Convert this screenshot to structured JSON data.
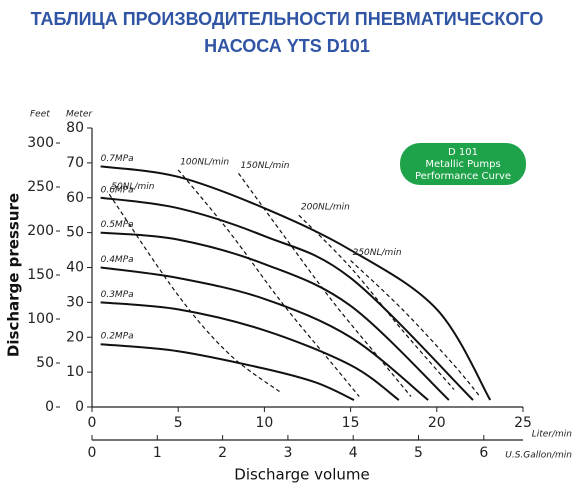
{
  "chart_data": {
    "type": "line",
    "title": [
      "ТАБЛИЦА ПРОИЗВОДИТЕЛЬНОСТИ ПНЕВМАТИЧЕСКОГО",
      "НАСОСА YTS D101"
    ],
    "badge": [
      "D 101",
      "Metallic Pumps",
      "Performance Curve"
    ],
    "badge_color": "#1ea34a",
    "x_label": "Discharge volume",
    "y_label": "Discharge pressure",
    "y_unit": "Meter",
    "y2_unit": "Feet",
    "x_unit": "Liter/min",
    "x2_unit": "U.S.Gallon/min",
    "xlim": [
      0,
      25
    ],
    "xticks": [
      0,
      5,
      10,
      15,
      20,
      25
    ],
    "x2lim": [
      0,
      6.6
    ],
    "x2ticks": [
      0,
      1,
      2,
      3,
      4,
      5,
      6
    ],
    "ylim": [
      0,
      80
    ],
    "yticks": [
      0,
      10,
      20,
      30,
      40,
      50,
      60,
      70,
      80
    ],
    "y2lim": [
      0,
      300
    ],
    "y2ticks": [
      0,
      50,
      100,
      150,
      200,
      250,
      300
    ],
    "series": [
      {
        "name": "0.7MPa",
        "style": "solid",
        "color": "#111",
        "x": [
          0.5,
          5,
          10,
          15,
          20,
          23.1
        ],
        "values": [
          69,
          66,
          57,
          45,
          28,
          2
        ]
      },
      {
        "name": "0.6MPa",
        "style": "solid",
        "color": "#111",
        "x": [
          0.5,
          5,
          10,
          15,
          22.1
        ],
        "values": [
          60,
          57,
          49,
          37,
          2
        ]
      },
      {
        "name": "0.5MPa",
        "style": "solid",
        "color": "#111",
        "x": [
          0.5,
          5,
          10,
          15,
          20.7
        ],
        "values": [
          50,
          48,
          41,
          29,
          2
        ]
      },
      {
        "name": "0.4MPa",
        "style": "solid",
        "color": "#111",
        "x": [
          0.5,
          5,
          10,
          15,
          19.5
        ],
        "values": [
          40,
          37,
          31,
          20,
          2
        ]
      },
      {
        "name": "0.3MPa",
        "style": "solid",
        "color": "#111",
        "x": [
          0.5,
          5,
          10,
          15,
          17.8
        ],
        "values": [
          30,
          28,
          22,
          12,
          2
        ]
      },
      {
        "name": "0.2MPa",
        "style": "solid",
        "color": "#111",
        "x": [
          0.5,
          5,
          10,
          13,
          15.2
        ],
        "values": [
          18,
          16,
          11,
          7,
          2
        ]
      },
      {
        "name": "50NL/min",
        "style": "dashed",
        "color": "#111",
        "x": [
          1,
          5,
          8,
          11
        ],
        "values": [
          61,
          32,
          15,
          4
        ]
      },
      {
        "name": "100NL/min",
        "style": "dashed",
        "color": "#111",
        "x": [
          5,
          8,
          11,
          14,
          15.5
        ],
        "values": [
          68,
          50,
          30,
          12,
          3
        ]
      },
      {
        "name": "150NL/min",
        "style": "dashed",
        "color": "#111",
        "x": [
          8.5,
          11,
          14,
          17,
          18.5
        ],
        "values": [
          67,
          50,
          30,
          12,
          3
        ]
      },
      {
        "name": "200NL/min",
        "style": "dashed",
        "color": "#111",
        "x": [
          12,
          15,
          18,
          21
        ],
        "values": [
          55,
          40,
          22,
          5
        ]
      },
      {
        "name": "250NL/min",
        "style": "dashed",
        "color": "#111",
        "x": [
          15,
          18,
          21,
          22.5
        ],
        "values": [
          42,
          28,
          12,
          3
        ]
      }
    ]
  }
}
